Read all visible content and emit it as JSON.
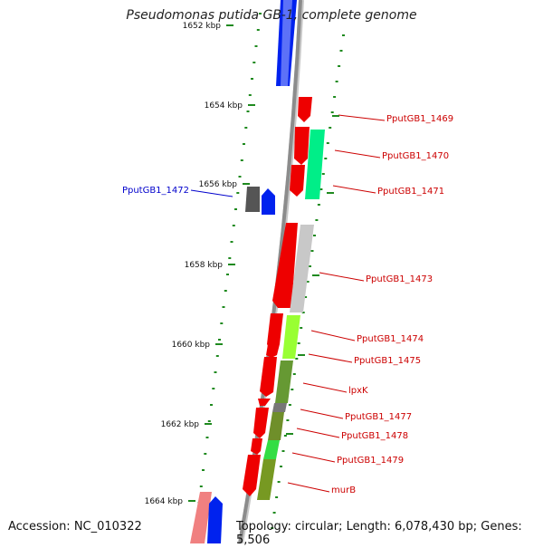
{
  "title": "Pseudomonas putida GB-1, complete genome",
  "footer": {
    "accession": "Accession: NC_010322",
    "topology": "Topology: circular; Length: 6,078,430 bp; Genes: 5,506"
  },
  "colors": {
    "backbone": "#8c8c8c",
    "tick": "#1f8a1f",
    "label_forward": "#cc0000",
    "label_reverse": "#0000cc"
  },
  "scale_labels": [
    "1652 kbp",
    "1654 kbp",
    "1656 kbp",
    "1658 kbp",
    "1660 kbp",
    "1662 kbp",
    "1664 kbp"
  ],
  "gene_labels": [
    {
      "text": "PputGB1_1469",
      "strand": "forward"
    },
    {
      "text": "PputGB1_1470",
      "strand": "forward"
    },
    {
      "text": "PputGB1_1471",
      "strand": "forward"
    },
    {
      "text": "PputGB1_1472",
      "strand": "reverse"
    },
    {
      "text": "PputGB1_1473",
      "strand": "forward"
    },
    {
      "text": "PputGB1_1474",
      "strand": "forward"
    },
    {
      "text": "PputGB1_1475",
      "strand": "forward"
    },
    {
      "text": "lpxK",
      "strand": "forward"
    },
    {
      "text": "PputGB1_1477",
      "strand": "forward"
    },
    {
      "text": "PputGB1_1478",
      "strand": "forward"
    },
    {
      "text": "PputGB1_1479",
      "strand": "forward"
    },
    {
      "text": "murB",
      "strand": "forward"
    }
  ]
}
